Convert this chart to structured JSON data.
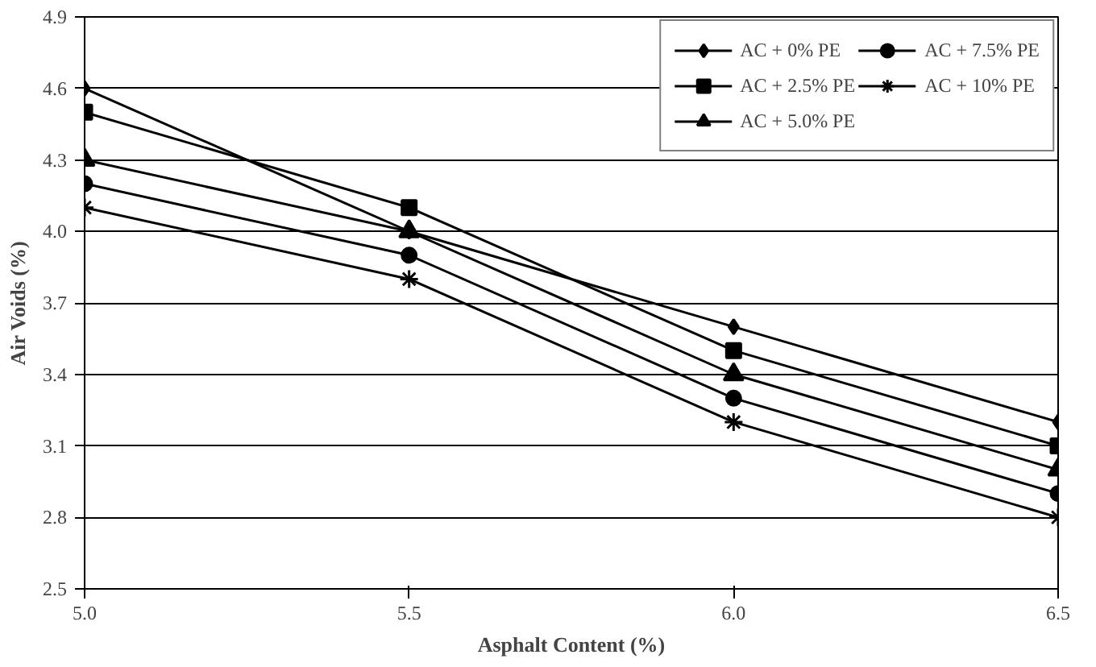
{
  "chart_data": {
    "type": "line",
    "xlabel": "Asphalt Content (%)",
    "ylabel": "Air Voids (%)",
    "x": [
      5.0,
      5.5,
      6.0,
      6.5
    ],
    "xlim": [
      5.0,
      6.5
    ],
    "xticks": [
      {
        "value": 5.0,
        "label": "5.0"
      },
      {
        "value": 5.5,
        "label": "5.5"
      },
      {
        "value": 6.0,
        "label": "6.0"
      },
      {
        "value": 6.5,
        "label": "6.5"
      }
    ],
    "ylim": [
      2.5,
      4.9
    ],
    "yticks": [
      2.5,
      2.8,
      3.1,
      {
        "value": 3.4,
        "label": "3.4"
      },
      3.7,
      {
        "value": 4.0,
        "label": "4.0"
      },
      4.3,
      4.6,
      4.9
    ],
    "grid": "y",
    "legend": "top right",
    "series": [
      {
        "name": "AC + 0% PE",
        "color": "#000000",
        "marker": "diamond",
        "values": [
          4.6,
          4.0,
          3.6,
          3.2
        ]
      },
      {
        "name": "AC + 2.5% PE",
        "color": "#000000",
        "marker": "square",
        "values": [
          4.5,
          4.1,
          3.5,
          3.1
        ]
      },
      {
        "name": "AC + 5.0% PE",
        "color": "#000000",
        "marker": "triangle",
        "values": [
          4.3,
          4.0,
          3.4,
          3.0
        ]
      },
      {
        "name": "AC + 7.5% PE",
        "color": "#000000",
        "marker": "circle",
        "values": [
          4.2,
          3.9,
          3.3,
          2.9
        ]
      },
      {
        "name": "AC + 10% PE",
        "color": "#000000",
        "marker": "cross",
        "values": [
          4.1,
          3.8,
          3.2,
          2.8
        ]
      }
    ]
  }
}
